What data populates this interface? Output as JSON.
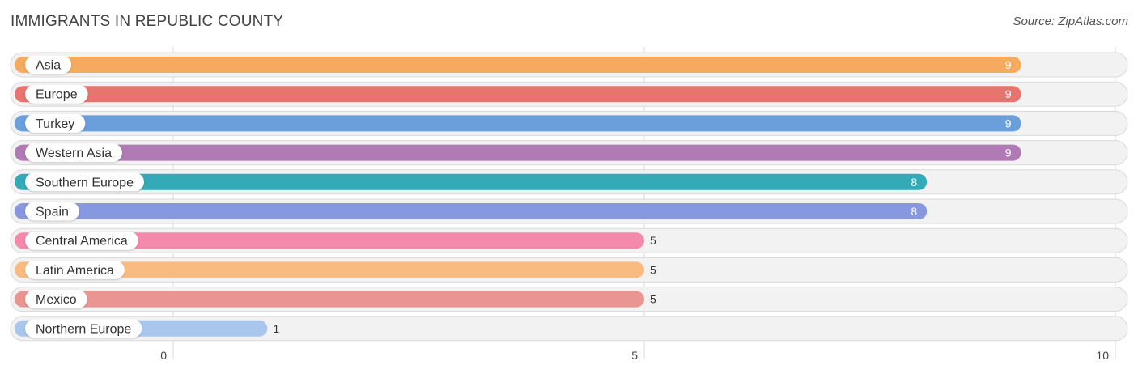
{
  "header": {
    "title": "IMMIGRANTS IN REPUBLIC COUNTY",
    "source": "Source: ZipAtlas.com"
  },
  "chart_data": {
    "type": "bar",
    "orientation": "horizontal",
    "title": "IMMIGRANTS IN REPUBLIC COUNTY",
    "xlabel": "",
    "ylabel": "",
    "xlim": [
      0,
      10
    ],
    "ticks": [
      0,
      5,
      10
    ],
    "tick_labels": [
      "0",
      "5",
      "10"
    ],
    "grid": true,
    "categories": [
      "Asia",
      "Europe",
      "Turkey",
      "Western Asia",
      "Southern Europe",
      "Spain",
      "Central America",
      "Latin America",
      "Mexico",
      "Northern Europe"
    ],
    "values": [
      9,
      9,
      9,
      9,
      8,
      8,
      5,
      5,
      5,
      1
    ],
    "value_labels": [
      "9",
      "9",
      "9",
      "9",
      "8",
      "8",
      "5",
      "5",
      "5",
      "1"
    ],
    "colors": [
      "#f6aa5e",
      "#e87470",
      "#6a9fdc",
      "#b07ab5",
      "#35aab7",
      "#8898e0",
      "#f589ac",
      "#f9bb80",
      "#e99592",
      "#a9c6ec"
    ]
  }
}
